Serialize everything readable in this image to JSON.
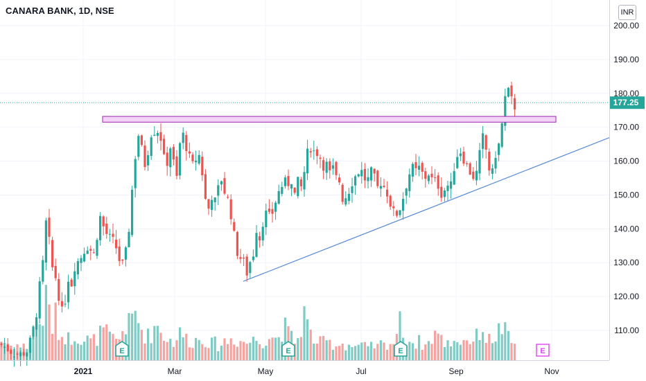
{
  "header": {
    "title": "CANARA BANK, 1D, NSE",
    "currency": "INR"
  },
  "colors": {
    "up": "#26a69a",
    "down": "#ef5350",
    "vol_up": "#80cbc4",
    "vol_down": "#f5a3a1",
    "resistance_fill": "#f3d3f7",
    "resistance_stroke": "#9c27b0",
    "trendline": "#5b8bd8",
    "last_price": "#26a69a"
  },
  "chart_data": {
    "type": "candlestick",
    "y_ticks": [
      "200.00",
      "190.00",
      "180.00",
      "170.00",
      "160.00",
      "150.00",
      "140.00",
      "130.00",
      "120.00",
      "110.00"
    ],
    "y_range": [
      101,
      204
    ],
    "x_ticks": [
      "2021",
      "Mar",
      "May",
      "Jul",
      "Sep",
      "Nov"
    ],
    "last_price": "177.25",
    "price_series": [
      [
        0,
        106
      ],
      [
        8,
        105
      ],
      [
        15,
        104
      ],
      [
        22,
        103
      ],
      [
        30,
        103
      ],
      [
        40,
        104
      ],
      [
        45,
        108
      ],
      [
        50,
        112
      ],
      [
        55,
        118
      ],
      [
        58,
        125
      ],
      [
        62,
        130
      ],
      [
        65,
        138
      ],
      [
        68,
        146
      ],
      [
        72,
        133
      ],
      [
        76,
        128
      ],
      [
        80,
        126
      ],
      [
        85,
        120
      ],
      [
        90,
        115
      ],
      [
        95,
        120
      ],
      [
        98,
        126
      ],
      [
        102,
        122
      ],
      [
        106,
        128
      ],
      [
        110,
        130
      ],
      [
        115,
        131
      ],
      [
        120,
        133
      ],
      [
        125,
        135
      ],
      [
        130,
        134
      ],
      [
        135,
        132
      ],
      [
        140,
        138
      ],
      [
        145,
        144
      ],
      [
        150,
        140
      ],
      [
        155,
        138
      ],
      [
        160,
        137
      ],
      [
        165,
        136
      ],
      [
        170,
        133
      ],
      [
        175,
        128
      ],
      [
        180,
        132
      ],
      [
        184,
        135
      ],
      [
        188,
        145
      ],
      [
        192,
        155
      ],
      [
        196,
        163
      ],
      [
        200,
        168
      ],
      [
        205,
        163
      ],
      [
        210,
        158
      ],
      [
        215,
        165
      ],
      [
        220,
        170
      ],
      [
        225,
        168
      ],
      [
        230,
        170
      ],
      [
        235,
        162
      ],
      [
        240,
        158
      ],
      [
        245,
        165
      ],
      [
        250,
        160
      ],
      [
        255,
        155
      ],
      [
        260,
        166
      ],
      [
        265,
        168
      ],
      [
        270,
        163
      ],
      [
        275,
        160
      ],
      [
        280,
        158
      ],
      [
        285,
        163
      ],
      [
        290,
        160
      ],
      [
        295,
        150
      ],
      [
        300,
        145
      ],
      [
        305,
        150
      ],
      [
        310,
        148
      ],
      [
        315,
        152
      ],
      [
        320,
        155
      ],
      [
        325,
        150
      ],
      [
        330,
        148
      ],
      [
        335,
        142
      ],
      [
        340,
        135
      ],
      [
        345,
        131
      ],
      [
        350,
        132
      ],
      [
        355,
        126
      ],
      [
        360,
        130
      ],
      [
        365,
        132
      ],
      [
        370,
        140
      ],
      [
        375,
        137
      ],
      [
        380,
        143
      ],
      [
        385,
        145
      ],
      [
        390,
        143
      ],
      [
        395,
        146
      ],
      [
        400,
        150
      ],
      [
        405,
        152
      ],
      [
        410,
        154
      ],
      [
        415,
        153
      ],
      [
        420,
        155
      ],
      [
        425,
        150
      ],
      [
        430,
        154
      ],
      [
        435,
        152
      ],
      [
        440,
        158
      ],
      [
        445,
        164
      ],
      [
        450,
        164
      ],
      [
        455,
        162
      ],
      [
        460,
        163
      ],
      [
        465,
        158
      ],
      [
        470,
        160
      ],
      [
        475,
        156
      ],
      [
        480,
        158
      ],
      [
        485,
        155
      ],
      [
        490,
        154
      ],
      [
        495,
        148
      ],
      [
        500,
        150
      ],
      [
        505,
        152
      ],
      [
        510,
        155
      ],
      [
        515,
        156
      ],
      [
        520,
        158
      ],
      [
        525,
        155
      ],
      [
        530,
        154
      ],
      [
        535,
        157
      ],
      [
        540,
        155
      ],
      [
        545,
        152
      ],
      [
        550,
        154
      ],
      [
        555,
        152
      ],
      [
        560,
        150
      ],
      [
        565,
        146
      ],
      [
        570,
        144
      ],
      [
        575,
        145
      ],
      [
        580,
        148
      ],
      [
        585,
        152
      ],
      [
        590,
        156
      ],
      [
        595,
        158
      ],
      [
        600,
        157
      ],
      [
        605,
        158
      ],
      [
        610,
        156
      ],
      [
        615,
        155
      ],
      [
        620,
        157
      ],
      [
        625,
        153
      ],
      [
        630,
        155
      ],
      [
        635,
        150
      ],
      [
        640,
        151
      ],
      [
        645,
        153
      ],
      [
        650,
        152
      ],
      [
        655,
        158
      ],
      [
        660,
        162
      ],
      [
        665,
        163
      ],
      [
        670,
        160
      ],
      [
        675,
        158
      ],
      [
        680,
        156
      ],
      [
        685,
        155
      ],
      [
        690,
        158
      ],
      [
        695,
        168
      ],
      [
        700,
        165
      ],
      [
        705,
        158
      ],
      [
        710,
        156
      ],
      [
        715,
        162
      ],
      [
        720,
        165
      ],
      [
        725,
        172
      ],
      [
        728,
        178
      ],
      [
        732,
        181
      ],
      [
        735,
        180
      ],
      [
        738,
        178
      ],
      [
        741,
        175
      ],
      [
        744,
        177
      ]
    ],
    "volume_series": [
      [
        0,
        0.3
      ],
      [
        8,
        0.28
      ],
      [
        15,
        0.22
      ],
      [
        22,
        0.25
      ],
      [
        30,
        0.2
      ],
      [
        40,
        0.22
      ],
      [
        45,
        0.3
      ],
      [
        50,
        0.45
      ],
      [
        55,
        0.6
      ],
      [
        60,
        0.55
      ],
      [
        64,
        0.8
      ],
      [
        68,
        0.95
      ],
      [
        72,
        0.7
      ],
      [
        76,
        0.5
      ],
      [
        80,
        0.65
      ],
      [
        85,
        0.45
      ],
      [
        90,
        0.35
      ],
      [
        95,
        0.4
      ],
      [
        100,
        0.3
      ],
      [
        105,
        0.38
      ],
      [
        110,
        0.42
      ],
      [
        115,
        0.35
      ],
      [
        120,
        0.3
      ],
      [
        125,
        0.32
      ],
      [
        130,
        0.28
      ],
      [
        135,
        0.3
      ],
      [
        140,
        0.35
      ],
      [
        145,
        0.4
      ],
      [
        150,
        0.45
      ],
      [
        155,
        0.38
      ],
      [
        160,
        0.34
      ],
      [
        165,
        0.3
      ],
      [
        170,
        0.28
      ],
      [
        175,
        0.4
      ],
      [
        180,
        0.55
      ],
      [
        185,
        0.5
      ],
      [
        190,
        0.62
      ],
      [
        195,
        0.7
      ],
      [
        200,
        0.6
      ],
      [
        205,
        0.45
      ],
      [
        210,
        0.4
      ],
      [
        215,
        0.35
      ],
      [
        220,
        0.45
      ],
      [
        225,
        0.55
      ],
      [
        230,
        0.5
      ],
      [
        235,
        0.4
      ],
      [
        240,
        0.35
      ],
      [
        245,
        0.3
      ],
      [
        250,
        0.28
      ],
      [
        255,
        0.35
      ],
      [
        260,
        0.4
      ],
      [
        265,
        0.38
      ],
      [
        270,
        0.32
      ],
      [
        275,
        0.28
      ],
      [
        280,
        0.3
      ],
      [
        285,
        0.32
      ],
      [
        290,
        0.3
      ],
      [
        295,
        0.35
      ],
      [
        300,
        0.28
      ],
      [
        305,
        0.25
      ],
      [
        310,
        0.26
      ],
      [
        315,
        0.22
      ],
      [
        320,
        0.25
      ],
      [
        325,
        0.3
      ],
      [
        330,
        0.28
      ],
      [
        335,
        0.35
      ],
      [
        340,
        0.32
      ],
      [
        345,
        0.28
      ],
      [
        350,
        0.3
      ],
      [
        355,
        0.26
      ],
      [
        360,
        0.28
      ],
      [
        365,
        0.3
      ],
      [
        370,
        0.32
      ],
      [
        375,
        0.28
      ],
      [
        380,
        0.3
      ],
      [
        385,
        0.34
      ],
      [
        390,
        0.4
      ],
      [
        395,
        0.35
      ],
      [
        400,
        0.3
      ],
      [
        405,
        0.45
      ],
      [
        410,
        0.5
      ],
      [
        415,
        0.42
      ],
      [
        420,
        0.35
      ],
      [
        425,
        0.3
      ],
      [
        430,
        0.32
      ],
      [
        435,
        0.55
      ],
      [
        440,
        0.75
      ],
      [
        445,
        0.45
      ],
      [
        450,
        0.35
      ],
      [
        455,
        0.3
      ],
      [
        460,
        0.28
      ],
      [
        465,
        0.25
      ],
      [
        470,
        0.3
      ],
      [
        475,
        0.26
      ],
      [
        480,
        0.25
      ],
      [
        485,
        0.22
      ],
      [
        490,
        0.28
      ],
      [
        495,
        0.25
      ],
      [
        500,
        0.22
      ],
      [
        505,
        0.24
      ],
      [
        510,
        0.2
      ],
      [
        515,
        0.22
      ],
      [
        520,
        0.2
      ],
      [
        525,
        0.22
      ],
      [
        530,
        0.18
      ],
      [
        535,
        0.2
      ],
      [
        540,
        0.22
      ],
      [
        545,
        0.2
      ],
      [
        550,
        0.25
      ],
      [
        555,
        0.22
      ],
      [
        560,
        0.28
      ],
      [
        565,
        0.25
      ],
      [
        570,
        0.3
      ],
      [
        575,
        0.58
      ],
      [
        580,
        0.5
      ],
      [
        585,
        0.32
      ],
      [
        590,
        0.3
      ],
      [
        595,
        0.28
      ],
      [
        600,
        0.26
      ],
      [
        605,
        0.28
      ],
      [
        610,
        0.25
      ],
      [
        615,
        0.22
      ],
      [
        620,
        0.28
      ],
      [
        625,
        0.4
      ],
      [
        630,
        0.45
      ],
      [
        635,
        0.32
      ],
      [
        640,
        0.28
      ],
      [
        645,
        0.25
      ],
      [
        650,
        0.28
      ],
      [
        655,
        0.3
      ],
      [
        660,
        0.32
      ],
      [
        665,
        0.28
      ],
      [
        670,
        0.3
      ],
      [
        675,
        0.35
      ],
      [
        680,
        0.3
      ],
      [
        685,
        0.28
      ],
      [
        690,
        0.42
      ],
      [
        695,
        0.55
      ],
      [
        700,
        0.35
      ],
      [
        705,
        0.3
      ],
      [
        710,
        0.32
      ],
      [
        715,
        0.38
      ],
      [
        720,
        0.45
      ],
      [
        725,
        0.5
      ],
      [
        730,
        0.4
      ],
      [
        735,
        0.3
      ],
      [
        740,
        0.25
      ],
      [
        744,
        0.22
      ]
    ],
    "resistance_zone": {
      "from_x": 148,
      "to_x": 802,
      "low": 171.5,
      "high": 173.2
    },
    "trendline": {
      "x1": 351,
      "y1": 124.5,
      "x2": 880,
      "y2": 167
    },
    "earnings_markers": [
      {
        "x": 176,
        "label": "E",
        "reported": true
      },
      {
        "x": 416,
        "label": "E",
        "reported": true
      },
      {
        "x": 578,
        "label": "E",
        "reported": true
      },
      {
        "x": 783,
        "label": "E",
        "reported": false
      }
    ]
  }
}
